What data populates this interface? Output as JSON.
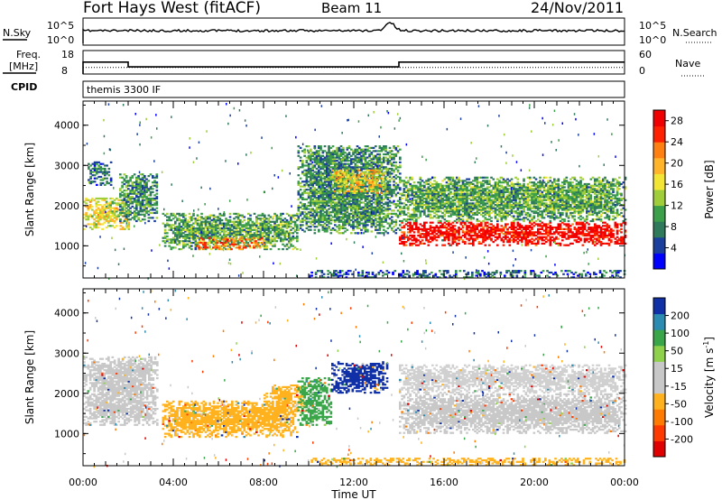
{
  "header": {
    "station": "Fort Hays West (fitACF)",
    "beam": "Beam 11",
    "date": "24/Nov/2011"
  },
  "status_panels": {
    "nsky_label": "N.Sky",
    "nsearch_label": "N.Search",
    "freq_label": "Freq.",
    "freq_unit": "[MHz]",
    "nave_label": "Nave",
    "cpid_label": "CPID",
    "cpid_value": "themis 3300 IF",
    "noise_ticks": [
      "10^5",
      "10^0"
    ],
    "freq_ticks": [
      18,
      8
    ],
    "nave_ticks": [
      60,
      0
    ],
    "noise_spike_time_h": 13.6,
    "freq_step_times_h": [
      2.0,
      14.0
    ],
    "freq_high_mhz": 13.5,
    "freq_low_mhz": 11.3,
    "nave_level": 18
  },
  "time_axis": {
    "label": "Time UT",
    "ticks": [
      "00:00",
      "04:00",
      "08:00",
      "12:00",
      "16:00",
      "20:00",
      "00:00"
    ]
  },
  "chart_data": [
    {
      "type": "heatmap",
      "name": "power",
      "ylabel": "Slant Range [km]",
      "yticks": [
        1000,
        2000,
        3000,
        4000
      ],
      "ylim": [
        200,
        4600
      ],
      "xlim_hours": [
        0,
        24
      ],
      "colorbar": {
        "label": "Power [dB]",
        "ticks": [
          4,
          8,
          12,
          16,
          20,
          24,
          28
        ],
        "range": [
          0,
          30
        ],
        "colors": [
          "#0000ff",
          "#1a3f9c",
          "#2f7a5b",
          "#3c9f4a",
          "#9fce3a",
          "#f2e534",
          "#ffb42a",
          "#ff7f10",
          "#ff2000",
          "#f00000"
        ]
      },
      "regions": [
        {
          "t": [
            0.0,
            2.0
          ],
          "r": [
            1400,
            2200
          ],
          "level": 0.55
        },
        {
          "t": [
            0.2,
            1.2
          ],
          "r": [
            2500,
            3100
          ],
          "level": 0.25
        },
        {
          "t": [
            1.6,
            3.3
          ],
          "r": [
            1600,
            2800
          ],
          "level": 0.3
        },
        {
          "t": [
            3.5,
            9.5
          ],
          "r": [
            900,
            1800
          ],
          "level": 0.35
        },
        {
          "t": [
            5.0,
            8.0
          ],
          "r": [
            900,
            1200
          ],
          "level": 0.75
        },
        {
          "t": [
            9.5,
            14.0
          ],
          "r": [
            1300,
            3500
          ],
          "level": 0.3
        },
        {
          "t": [
            11.0,
            13.5
          ],
          "r": [
            2300,
            2900
          ],
          "level": 0.6
        },
        {
          "t": [
            14.0,
            24.0
          ],
          "r": [
            1000,
            1600
          ],
          "level": 0.95
        },
        {
          "t": [
            14.0,
            24.0
          ],
          "r": [
            1600,
            2700
          ],
          "level": 0.35
        },
        {
          "t": [
            10.0,
            24.0
          ],
          "r": [
            200,
            400
          ],
          "level": 0.2
        }
      ]
    },
    {
      "type": "heatmap",
      "name": "velocity",
      "ylabel": "Slant Range [km]",
      "yticks": [
        1000,
        2000,
        3000,
        4000
      ],
      "ylim": [
        200,
        4600
      ],
      "xlim_hours": [
        0,
        24
      ],
      "colorbar": {
        "label": "Velocity [m s",
        "label_exp": "-1",
        "ticks": [
          200,
          100,
          50,
          15,
          -15,
          -50,
          -100,
          -200
        ],
        "colors": [
          "#1030a8",
          "#2b8bb0",
          "#3aa64a",
          "#8fd14a",
          "#c8c8c8",
          "#c8c8c8",
          "#ffb21e",
          "#ff7a00",
          "#ff3a00",
          "#e00000"
        ]
      },
      "regions": [
        {
          "t": [
            0.0,
            3.3
          ],
          "r": [
            1200,
            2900
          ],
          "color": "#c8c8c8"
        },
        {
          "t": [
            3.5,
            9.5
          ],
          "r": [
            900,
            1800
          ],
          "color": "#ffb21e"
        },
        {
          "t": [
            8.0,
            9.8
          ],
          "r": [
            1500,
            2200
          ],
          "color": "#ffb21e"
        },
        {
          "t": [
            9.5,
            11.0
          ],
          "r": [
            1200,
            2400
          ],
          "color": "#3aa64a"
        },
        {
          "t": [
            11.0,
            13.5
          ],
          "r": [
            2000,
            2800
          ],
          "color": "#1030a8"
        },
        {
          "t": [
            14.0,
            24.0
          ],
          "r": [
            1000,
            2000
          ],
          "color": "#c8c8c8"
        },
        {
          "t": [
            14.0,
            24.0
          ],
          "r": [
            2000,
            2700
          ],
          "color": "#d0d0d0"
        },
        {
          "t": [
            10.0,
            24.0
          ],
          "r": [
            200,
            400
          ],
          "color": "#ffb21e"
        }
      ]
    }
  ]
}
